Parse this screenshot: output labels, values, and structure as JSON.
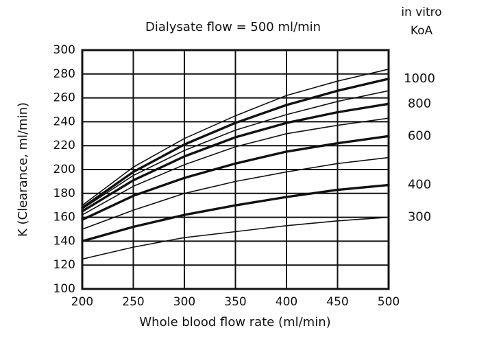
{
  "chart_data": {
    "type": "line",
    "title": "Dialysate flow = 500 ml/min",
    "xlabel": "Whole blood flow rate (ml/min)",
    "ylabel": "K (Clearance, ml/min)",
    "legend_title": [
      "in vitro",
      "KoA"
    ],
    "x": [
      200,
      250,
      300,
      350,
      400,
      450,
      500
    ],
    "xlim": [
      200,
      500
    ],
    "xticks": [
      200,
      250,
      300,
      350,
      400,
      450,
      500
    ],
    "ylim": [
      100,
      300
    ],
    "yticks": [
      100,
      120,
      140,
      160,
      180,
      200,
      220,
      240,
      260,
      280,
      300
    ],
    "grid": true,
    "series": [
      {
        "name": "300",
        "color": "#111111",
        "style": "thin",
        "values": [
          125,
          135,
          143,
          148,
          153,
          157,
          160
        ]
      },
      {
        "name": "400",
        "color": "#111111",
        "style": "thick",
        "values": [
          140,
          152,
          162,
          170,
          177,
          183,
          187
        ]
      },
      {
        "color": "#111111",
        "style": "thin",
        "values": [
          150,
          166,
          180,
          190,
          198,
          205,
          210
        ]
      },
      {
        "name": "600",
        "color": "#111111",
        "style": "thick",
        "values": [
          158,
          178,
          193,
          205,
          215,
          222,
          228
        ]
      },
      {
        "color": "#111111",
        "style": "thin",
        "values": [
          162,
          186,
          204,
          219,
          230,
          237,
          243
        ]
      },
      {
        "name": "800",
        "color": "#111111",
        "style": "thick",
        "values": [
          165,
          191,
          211,
          227,
          239,
          248,
          255
        ]
      },
      {
        "color": "#111111",
        "style": "thin",
        "values": [
          167,
          195,
          216,
          233,
          246,
          257,
          266
        ]
      },
      {
        "name": "1000",
        "color": "#111111",
        "style": "thick",
        "values": [
          168,
          198,
          221,
          239,
          254,
          266,
          276
        ]
      },
      {
        "color": "#111111",
        "style": "thin",
        "values": [
          170,
          202,
          226,
          245,
          262,
          274,
          284
        ]
      }
    ]
  }
}
